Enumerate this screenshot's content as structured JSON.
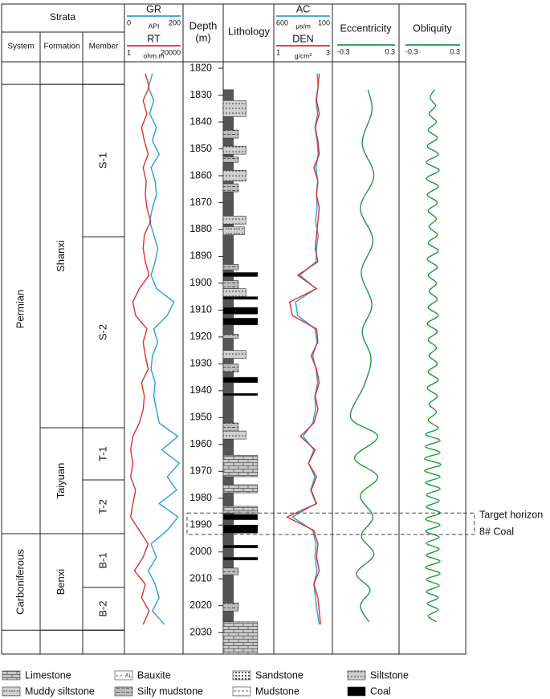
{
  "header": {
    "strata": "Strata",
    "system": "System",
    "formation": "Formation",
    "member": "Member",
    "depth": "Depth",
    "depth_unit": "(m)",
    "lithology": "Lithology"
  },
  "depth_axis": {
    "lim": [
      1817.6,
      2038
    ],
    "ticks": [
      1820,
      1830,
      1840,
      1850,
      1860,
      1870,
      1880,
      1890,
      1900,
      1910,
      1920,
      1930,
      1940,
      1950,
      1960,
      1970,
      1980,
      1990,
      2000,
      2010,
      2020,
      2030
    ]
  },
  "strata": {
    "system": [
      {
        "label": "Permian",
        "depth_range": [
          1826,
          1993.2
        ]
      },
      {
        "label": "Carboniferous",
        "depth_range": [
          1993.2,
          2029.1
        ]
      }
    ],
    "formation": [
      {
        "label": "Shanxi",
        "depth_range": [
          1826,
          1953.8
        ]
      },
      {
        "label": "Taiyuan",
        "depth_range": [
          1953.8,
          1993.2
        ]
      },
      {
        "label": "Benxi",
        "depth_range": [
          1993.2,
          2029.1
        ]
      }
    ],
    "member": [
      {
        "label": "S-1",
        "depth_range": [
          1826,
          1882.7
        ]
      },
      {
        "label": "S-2",
        "depth_range": [
          1882.7,
          1953.8
        ]
      },
      {
        "label": "T-1",
        "depth_range": [
          1953.8,
          1973.2
        ]
      },
      {
        "label": "T-2",
        "depth_range": [
          1973.2,
          1993.2
        ]
      },
      {
        "label": "B-1",
        "depth_range": [
          1993.2,
          2013.2
        ]
      },
      {
        "label": "B-2",
        "depth_range": [
          2013.2,
          2029.1
        ]
      }
    ]
  },
  "logs": [
    {
      "curves": [
        {
          "name": "GR",
          "unit": "API",
          "color": "#2e9bd6",
          "lim": [
            0,
            200
          ],
          "log": false,
          "depth": [
            1822,
            1827,
            1832,
            1837,
            1842,
            1847,
            1852,
            1857,
            1862,
            1867,
            1872,
            1877,
            1882,
            1887,
            1892,
            1897,
            1902,
            1907,
            1912,
            1917,
            1922,
            1927,
            1932,
            1937,
            1942,
            1947,
            1952,
            1957,
            1962,
            1967,
            1972,
            1977,
            1982,
            1987,
            1992,
            1997,
            2002,
            2007,
            2012,
            2017,
            2022,
            2027
          ],
          "values": [
            95,
            80,
            100,
            85,
            110,
            95,
            120,
            90,
            105,
            110,
            95,
            85,
            100,
            115,
            105,
            90,
            110,
            175,
            150,
            100,
            115,
            95,
            90,
            105,
            100,
            110,
            120,
            190,
            130,
            195,
            150,
            185,
            120,
            190,
            150,
            90,
            110,
            80,
            105,
            120,
            95,
            140
          ]
        },
        {
          "name": "RT",
          "unit": "ohm.m",
          "color": "#d8312c",
          "lim": [
            1,
            20000
          ],
          "log": true,
          "depth": [
            1822,
            1827,
            1832,
            1837,
            1842,
            1847,
            1852,
            1857,
            1862,
            1867,
            1872,
            1877,
            1882,
            1887,
            1892,
            1897,
            1902,
            1907,
            1912,
            1917,
            1922,
            1927,
            1932,
            1937,
            1942,
            1947,
            1952,
            1957,
            1962,
            1967,
            1972,
            1977,
            1982,
            1987,
            1992,
            1997,
            2002,
            2007,
            2012,
            2017,
            2022,
            2027
          ],
          "values": [
            30,
            60,
            20,
            40,
            15,
            25,
            50,
            20,
            35,
            30,
            40,
            80,
            25,
            20,
            30,
            60,
            10,
            3,
            5,
            40,
            20,
            30,
            50,
            15,
            25,
            20,
            10,
            3,
            2,
            3,
            2,
            5,
            3,
            2,
            10,
            50,
            20,
            4,
            30,
            15,
            60,
            20
          ]
        }
      ]
    },
    {
      "curves": [
        {
          "name": "AC",
          "unit": "μs/m",
          "color": "#2e9bd6",
          "lim": [
            600,
            100
          ],
          "log": false,
          "depth": [
            1822,
            1827,
            1832,
            1837,
            1842,
            1847,
            1852,
            1857,
            1862,
            1867,
            1872,
            1877,
            1882,
            1887,
            1892,
            1897,
            1902,
            1907,
            1912,
            1917,
            1922,
            1927,
            1932,
            1937,
            1942,
            1947,
            1952,
            1957,
            1962,
            1967,
            1972,
            1977,
            1982,
            1987,
            1992,
            1997,
            2002,
            2007,
            2012,
            2017,
            2022,
            2027
          ],
          "values": [
            220,
            210,
            230,
            215,
            240,
            220,
            210,
            230,
            215,
            225,
            220,
            235,
            210,
            225,
            230,
            380,
            230,
            420,
            400,
            240,
            220,
            260,
            230,
            215,
            240,
            235,
            260,
            350,
            250,
            300,
            240,
            280,
            230,
            450,
            260,
            230,
            240,
            220,
            250,
            235,
            220,
            200
          ]
        },
        {
          "name": "DEN",
          "unit": "g/cm³",
          "color": "#d8312c",
          "lim": [
            1,
            3
          ],
          "log": false,
          "depth": [
            1822,
            1827,
            1832,
            1837,
            1842,
            1847,
            1852,
            1857,
            1862,
            1867,
            1872,
            1877,
            1882,
            1887,
            1892,
            1897,
            1902,
            1907,
            1912,
            1917,
            1922,
            1927,
            1932,
            1937,
            1942,
            1947,
            1952,
            1957,
            1962,
            1967,
            1972,
            1977,
            1982,
            1987,
            1992,
            1997,
            2002,
            2007,
            2012,
            2017,
            2022,
            2027
          ],
          "values": [
            2.6,
            2.55,
            2.5,
            2.6,
            2.45,
            2.55,
            2.6,
            2.4,
            2.55,
            2.5,
            2.6,
            2.55,
            2.5,
            2.45,
            2.55,
            1.8,
            2.5,
            1.5,
            1.6,
            2.5,
            2.55,
            2.3,
            2.5,
            2.6,
            2.45,
            2.55,
            2.4,
            1.9,
            2.45,
            2.2,
            2.5,
            2.3,
            2.5,
            1.4,
            2.4,
            2.55,
            2.5,
            2.6,
            2.4,
            2.55,
            2.6,
            2.65
          ]
        }
      ]
    },
    {
      "title": "Eccentricity",
      "curves": [
        {
          "color": "#1f9a3c",
          "lim": [
            -0.3,
            0.3
          ],
          "log": false,
          "smooth": true,
          "depth": [
            1828,
            1836,
            1848,
            1860,
            1872,
            1884,
            1896,
            1908,
            1918,
            1928,
            1938,
            1950,
            1957,
            1965,
            1972,
            1979,
            1987,
            1994,
            2001,
            2008,
            2014,
            2020,
            2026
          ],
          "values": [
            0.02,
            0.06,
            -0.04,
            0.08,
            -0.06,
            0.07,
            -0.05,
            0.06,
            -0.04,
            0.05,
            -0.02,
            -0.16,
            0.12,
            -0.12,
            0.12,
            -0.06,
            0.07,
            -0.05,
            0.08,
            -0.1,
            0.04,
            -0.06,
            0.03
          ]
        }
      ]
    },
    {
      "title": "Obliquity",
      "curves": [
        {
          "color": "#1f9a3c",
          "lim": [
            -0.3,
            0.3
          ],
          "log": false,
          "smooth": true,
          "depth": [
            1828,
            1831,
            1834,
            1837,
            1840,
            1843,
            1846,
            1849,
            1852,
            1855,
            1858,
            1861,
            1864,
            1867,
            1870,
            1873,
            1876,
            1879,
            1882,
            1885,
            1888,
            1891,
            1894,
            1897,
            1900,
            1903,
            1906,
            1909,
            1912,
            1915,
            1918,
            1921,
            1924,
            1927,
            1930,
            1933,
            1936,
            1939,
            1942,
            1945,
            1948,
            1951,
            1954,
            1956.25,
            1958.5,
            1960.75,
            1963,
            1965.25,
            1967.5,
            1969.75,
            1972,
            1974.25,
            1976.5,
            1978.75,
            1981,
            1983.25,
            1985.5,
            1987.75,
            1990,
            1992.25,
            1994.5,
            1996.75,
            1999,
            2001.25,
            2003.5,
            2005.75,
            2008,
            2010.25,
            2012.5,
            2014.75,
            2017,
            2019.25,
            2021.5,
            2023.75,
            2026
          ],
          "values": [
            0.02,
            -0.03,
            0.03,
            -0.04,
            0.04,
            -0.05,
            0.05,
            -0.06,
            0.06,
            -0.07,
            0.07,
            -0.07,
            0.06,
            -0.06,
            0.05,
            -0.05,
            0.04,
            -0.04,
            0.05,
            -0.05,
            0.06,
            -0.06,
            0.05,
            -0.05,
            0.04,
            -0.04,
            0.05,
            -0.05,
            0.06,
            -0.06,
            0.05,
            -0.05,
            0.04,
            -0.04,
            0.05,
            -0.05,
            0.06,
            -0.06,
            0.05,
            -0.04,
            0.04,
            -0.05,
            0.06,
            -0.08,
            0.08,
            -0.08,
            0.08,
            -0.09,
            0.09,
            -0.09,
            0.08,
            -0.08,
            0.08,
            -0.07,
            0.07,
            -0.07,
            0.08,
            -0.08,
            0.08,
            -0.08,
            0.07,
            -0.07,
            0.07,
            -0.07,
            0.08,
            -0.08,
            0.08,
            -0.07,
            0.07,
            -0.07,
            0.06,
            -0.06,
            0.06,
            -0.05,
            0.04
          ]
        }
      ]
    }
  ],
  "lithology_layers": [
    {
      "pattern": "mudstone",
      "depth_range": [
        1828,
        2026
      ]
    },
    {
      "pattern": "siltstone",
      "depth_range": [
        1832,
        1838
      ]
    },
    {
      "pattern": "silty_mudstone",
      "depth_range": [
        1843,
        1846
      ]
    },
    {
      "pattern": "siltstone",
      "depth_range": [
        1849,
        1852
      ]
    },
    {
      "pattern": "silty_mudstone",
      "depth_range": [
        1853,
        1855
      ]
    },
    {
      "pattern": "siltstone",
      "depth_range": [
        1858,
        1862
      ]
    },
    {
      "pattern": "silty_mudstone",
      "depth_range": [
        1863,
        1866
      ]
    },
    {
      "pattern": "siltstone",
      "depth_range": [
        1875,
        1878
      ]
    },
    {
      "pattern": "muddy_siltstone",
      "depth_range": [
        1879,
        1882
      ]
    },
    {
      "pattern": "silty_mudstone",
      "depth_range": [
        1893,
        1895
      ]
    },
    {
      "pattern": "coal",
      "depth_range": [
        1896,
        1897.5
      ]
    },
    {
      "pattern": "silty_mudstone",
      "depth_range": [
        1899,
        1902
      ]
    },
    {
      "pattern": "siltstone",
      "depth_range": [
        1902,
        1905
      ]
    },
    {
      "pattern": "coal",
      "depth_range": [
        1905,
        1906
      ]
    },
    {
      "pattern": "coal",
      "depth_range": [
        1909,
        1911.5
      ]
    },
    {
      "pattern": "coal",
      "depth_range": [
        1913,
        1915.5
      ]
    },
    {
      "pattern": "silty_mudstone",
      "depth_range": [
        1919,
        1920.5
      ]
    },
    {
      "pattern": "siltstone",
      "depth_range": [
        1925,
        1928
      ]
    },
    {
      "pattern": "silty_mudstone",
      "depth_range": [
        1930,
        1933
      ]
    },
    {
      "pattern": "coal",
      "depth_range": [
        1935,
        1937
      ]
    },
    {
      "pattern": "coal",
      "depth_range": [
        1941,
        1941.8
      ]
    },
    {
      "pattern": "silty_mudstone",
      "depth_range": [
        1952,
        1955
      ]
    },
    {
      "pattern": "siltstone",
      "depth_range": [
        1955,
        1958
      ]
    },
    {
      "pattern": "limestone",
      "depth_range": [
        1964,
        1972
      ]
    },
    {
      "pattern": "limestone",
      "depth_range": [
        1975,
        1978
      ]
    },
    {
      "pattern": "limestone",
      "depth_range": [
        1983,
        1985.5
      ]
    },
    {
      "pattern": "coal",
      "depth_range": [
        1986,
        1988
      ]
    },
    {
      "pattern": "coal",
      "depth_range": [
        1990,
        1993
      ]
    },
    {
      "pattern": "coal",
      "depth_range": [
        1997.5,
        1998.5
      ]
    },
    {
      "pattern": "coal",
      "depth_range": [
        2002,
        2003
      ]
    },
    {
      "pattern": "silty_mudstone",
      "depth_range": [
        2006,
        2008.5
      ]
    },
    {
      "pattern": "silty_mudstone",
      "depth_range": [
        2019,
        2022
      ]
    },
    {
      "pattern": "limestone",
      "depth_range": [
        2026,
        2038
      ]
    }
  ],
  "target": {
    "label": "Target horizon",
    "coal_label": "8# Coal",
    "depth_range": [
      1985.5,
      1993.5
    ]
  },
  "legend": [
    {
      "label": "Limestone",
      "pattern": "limestone"
    },
    {
      "label": "Bauxite",
      "pattern": "bauxite"
    },
    {
      "label": "Sandstone",
      "pattern": "sandstone"
    },
    {
      "label": "Siltstone",
      "pattern": "siltstone"
    },
    {
      "label": "Muddy siltstone",
      "pattern": "muddy_siltstone"
    },
    {
      "label": "Silty mudstone",
      "pattern": "silty_mudstone"
    },
    {
      "label": "Mudstone",
      "pattern": "mudstone_legend"
    },
    {
      "label": "Coal",
      "pattern": "coal"
    }
  ]
}
